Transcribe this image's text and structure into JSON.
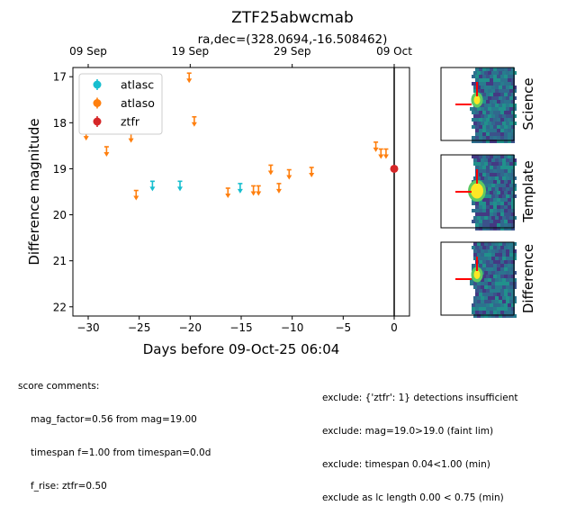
{
  "chart_data": {
    "type": "scatter",
    "title": "ZTF25abwcmab",
    "subtitle": "ra,dec=(328.0694,-16.508462)",
    "xlabel": "Days before 09-Oct-25 06:04",
    "ylabel": "Difference magnitude",
    "xlim": [
      -31.5,
      1.5
    ],
    "ylim": [
      22.2,
      16.8
    ],
    "y_inverted": true,
    "x_ticks": [
      -30,
      -25,
      -20,
      -15,
      -10,
      -5,
      0
    ],
    "x_tick_labels": [
      "−30",
      "−25",
      "−20",
      "−15",
      "−10",
      "−5",
      "0"
    ],
    "y_ticks": [
      17,
      18,
      19,
      20,
      21,
      22
    ],
    "y_tick_labels": [
      "17",
      "18",
      "19",
      "20",
      "21",
      "22"
    ],
    "top_axis_ticks": [
      -30,
      -20,
      -10,
      0
    ],
    "top_axis_labels": [
      "09 Sep",
      "19 Sep",
      "29 Sep",
      "09 Oct"
    ],
    "vertical_line_x": 0,
    "legend_position": "upper-left",
    "grid": false,
    "series": [
      {
        "name": "atlasc",
        "color": "#17becf",
        "marker": "upper-limit",
        "x": [
          -23.7,
          -21.0,
          -15.1
        ],
        "y": [
          19.35,
          19.35,
          19.4
        ]
      },
      {
        "name": "atlaso",
        "color": "#ff7f0e",
        "marker": "upper-limit",
        "x": [
          -30.2,
          -28.2,
          -25.8,
          -25.3,
          -20.1,
          -19.6,
          -16.3,
          -13.8,
          -13.3,
          -12.1,
          -11.3,
          -10.3,
          -8.1,
          -1.8,
          -1.3,
          -0.8
        ],
        "y": [
          18.25,
          18.6,
          18.3,
          19.55,
          17.0,
          17.95,
          19.5,
          19.45,
          19.45,
          19.0,
          19.4,
          19.1,
          19.05,
          18.5,
          18.65,
          18.65
        ]
      },
      {
        "name": "ztfr",
        "color": "#d62728",
        "marker": "point",
        "x": [
          0.0
        ],
        "y": [
          19.0
        ]
      }
    ]
  },
  "stamps": [
    {
      "label": "Science"
    },
    {
      "label": "Template"
    },
    {
      "label": "Difference"
    }
  ],
  "score_comments": {
    "title": "score comments:",
    "lines": [
      "mag_factor=0.56 from mag=19.00",
      "timespan f=1.00 from timespan=0.0d",
      "f_rise: ztfr=0.50"
    ]
  },
  "exclude_lines": [
    "exclude: {'ztfr': 1} detections insufficient",
    "exclude: mag=19.0>19.0 (faint lim)",
    "exclude: timespan 0.04<1.00 (min)",
    "exclude as lc length 0.00 < 0.75 (min)"
  ]
}
